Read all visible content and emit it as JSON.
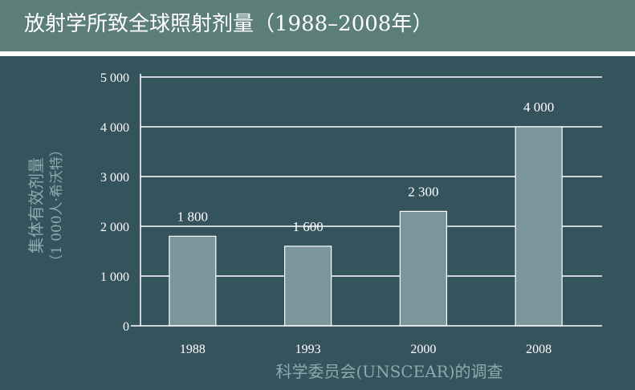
{
  "title": "放射学所致全球照射剂量（1988–2008年）",
  "chart_data": {
    "type": "bar",
    "title": "放射学所致全球照射剂量（1988–2008年）",
    "categories": [
      "1988",
      "1993",
      "2000",
      "2008"
    ],
    "values": [
      1800,
      1600,
      2300,
      4000
    ],
    "value_labels": [
      "1 800",
      "1 600",
      "2 300",
      "4 000"
    ],
    "y_ticks": [
      0,
      1000,
      2000,
      3000,
      4000,
      5000
    ],
    "y_tick_labels": [
      "0",
      "1 000",
      "2 000",
      "3 000",
      "4 000",
      "5 000"
    ],
    "ylim": [
      0,
      5000
    ],
    "xlabel": "科学委员会(UNSCEAR)的调查",
    "ylabel": "集体有效剂量",
    "ylabel_unit": "（1 000人·希沃特）",
    "grid": true,
    "colors": {
      "background": "#34535d",
      "header": "#5b7e78",
      "bar": "#7a969a",
      "bar_edge": "#ffffff",
      "grid": "#ffffff",
      "axis_title": "#8ea9ad"
    }
  }
}
